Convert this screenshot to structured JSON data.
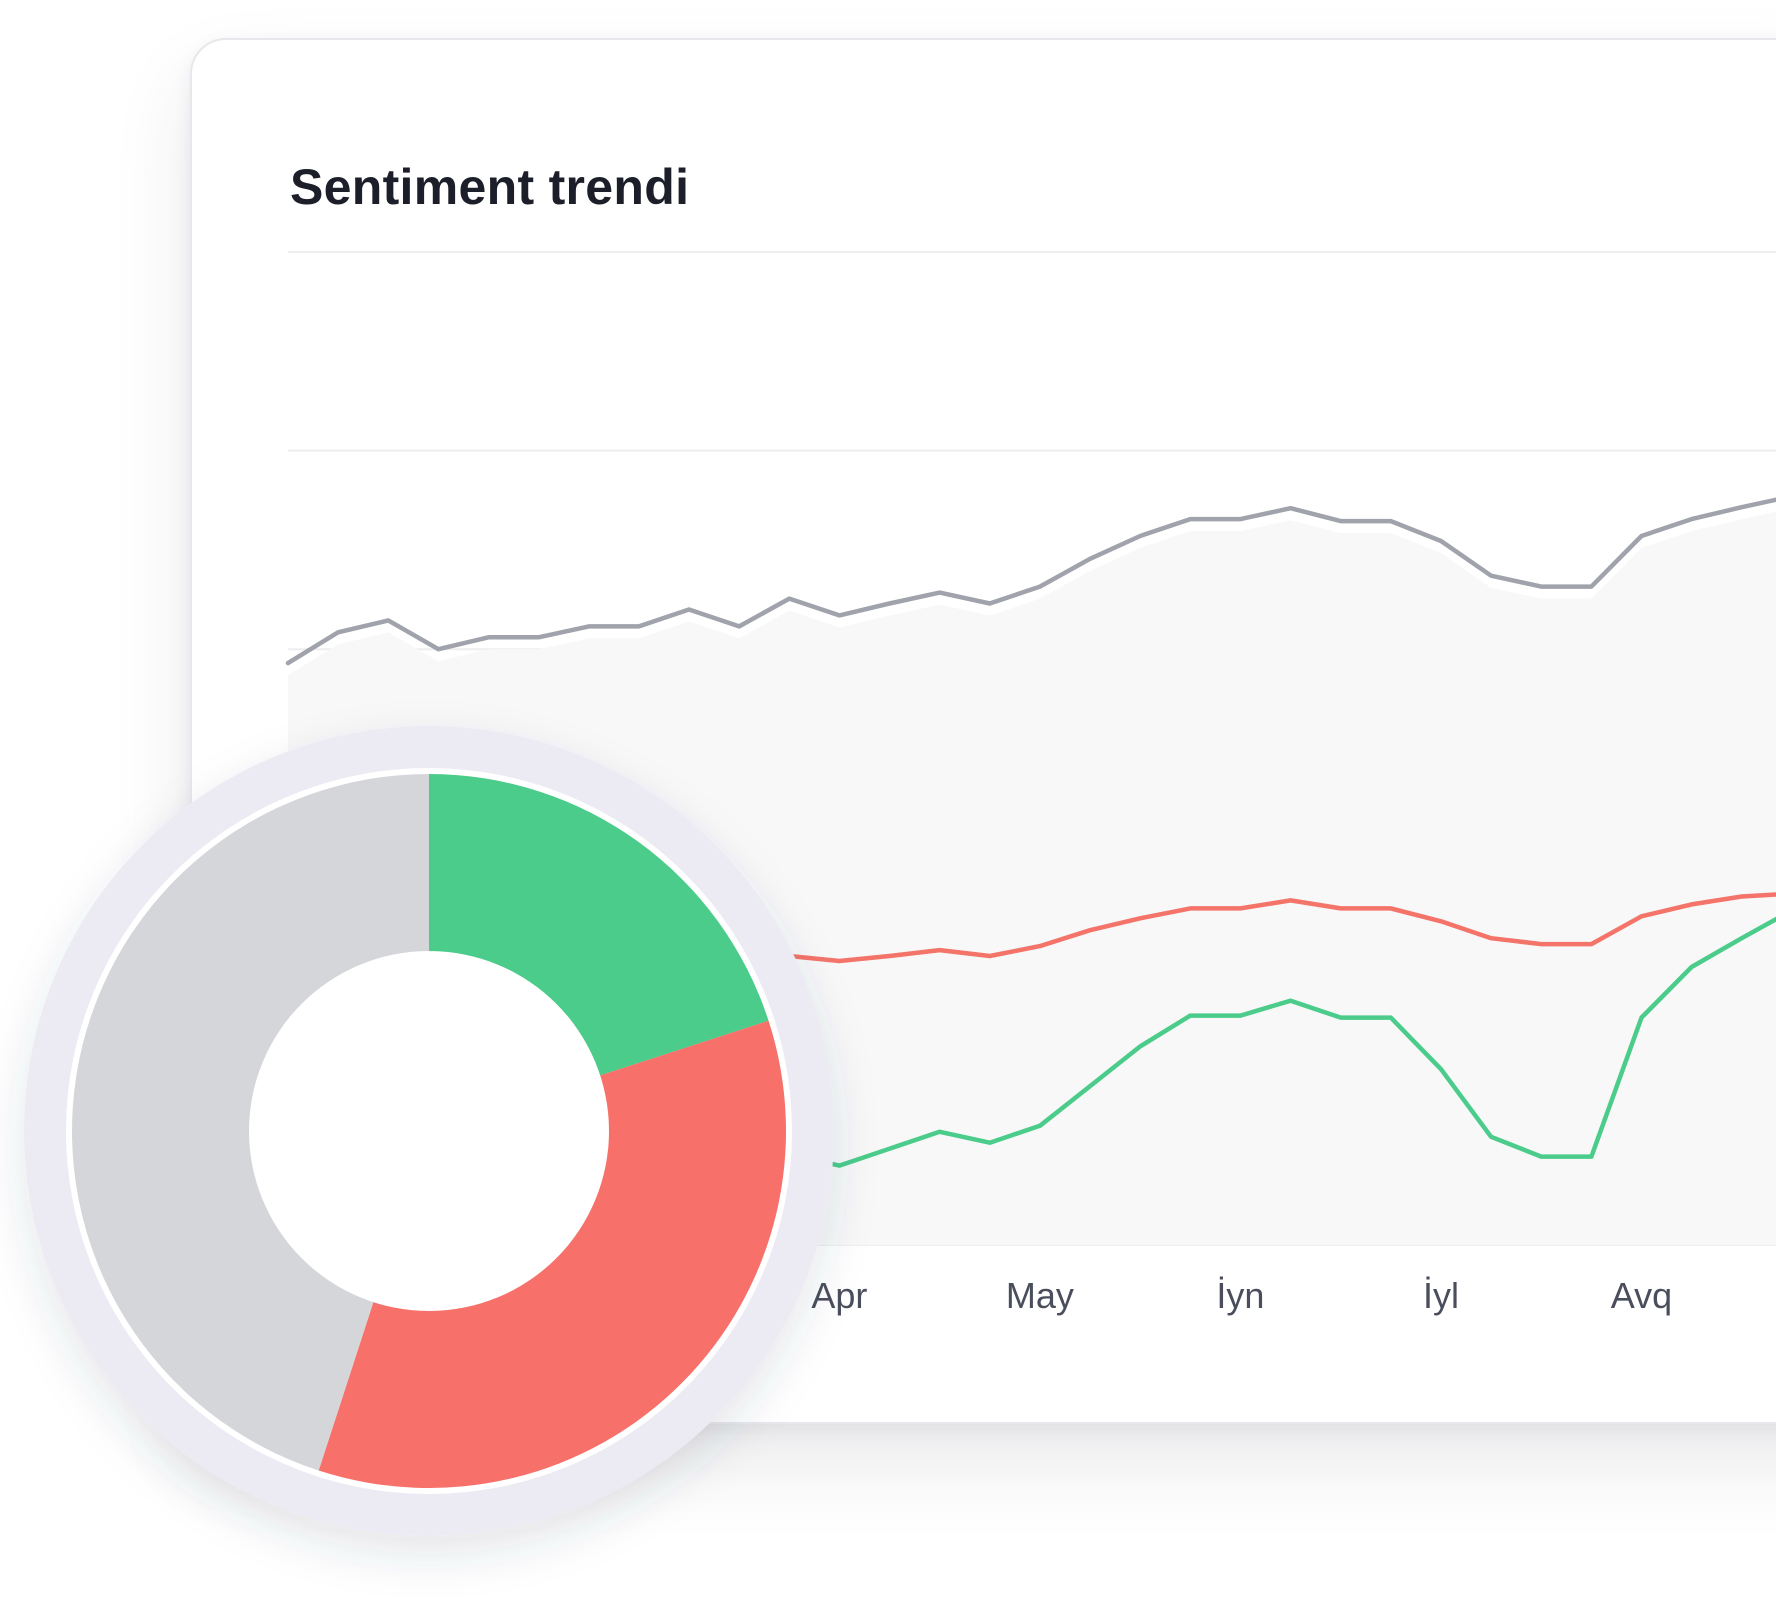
{
  "card": {
    "title": "Sentiment trendi"
  },
  "chart_data": [
    {
      "type": "line",
      "title": "Sentiment trendi",
      "x_tick_labels": [
        "Apr",
        "May",
        "İyn",
        "İyl",
        "Avq"
      ],
      "x": [
        0,
        1,
        2,
        3,
        4,
        5,
        6,
        7,
        8,
        9,
        10,
        11,
        12,
        13,
        14,
        15,
        16,
        17,
        18,
        19,
        20,
        21,
        22,
        23,
        24,
        25,
        26,
        27,
        28,
        29,
        30,
        31
      ],
      "grid": true,
      "ylim": [
        0,
        100
      ],
      "series": [
        {
          "color": "#a0a3ab",
          "values": [
            58.6,
            61.7,
            62.9,
            60.0,
            61.2,
            61.2,
            62.3,
            62.3,
            64.0,
            62.3,
            65.1,
            63.4,
            64.6,
            65.7,
            64.6,
            66.3,
            69.1,
            71.4,
            73.1,
            73.1,
            74.2,
            72.9,
            72.9,
            70.9,
            67.4,
            66.3,
            66.3,
            71.4,
            73.1,
            74.3,
            75.4,
            76.0
          ]
        },
        {
          "color": "#f4746a",
          "values": [
            26.3,
            27.4,
            28.9,
            27.4,
            28.0,
            28.6,
            28.9,
            28.9,
            29.4,
            28.0,
            29.1,
            28.6,
            29.1,
            29.7,
            29.1,
            30.1,
            31.7,
            32.9,
            33.9,
            33.9,
            34.7,
            33.9,
            33.9,
            32.6,
            30.9,
            30.3,
            30.3,
            33.1,
            34.3,
            35.1,
            35.4,
            36.0
          ]
        },
        {
          "color": "#4bcc8a",
          "values": [
            4.6,
            6.9,
            8.0,
            5.7,
            6.9,
            6.9,
            8.0,
            7.7,
            9.1,
            7.4,
            9.1,
            8.0,
            9.7,
            11.4,
            10.3,
            12.0,
            16.0,
            20.0,
            23.1,
            23.1,
            24.6,
            22.9,
            22.9,
            17.7,
            10.9,
            8.9,
            8.9,
            22.9,
            28.0,
            30.9,
            33.7,
            36.0
          ]
        }
      ]
    },
    {
      "type": "pie",
      "style": "donut",
      "slices": [
        {
          "color": "#4bcc8a",
          "value": 20
        },
        {
          "color": "#f7706a",
          "value": 35
        },
        {
          "color": "#d5d6da",
          "value": 45
        }
      ]
    }
  ]
}
